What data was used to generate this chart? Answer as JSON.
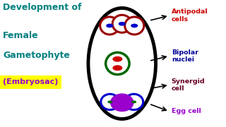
{
  "bg_color": "#ffffff",
  "title_lines": [
    "Development of",
    "Female",
    "Gametophyte"
  ],
  "title_color": "#008080",
  "subtitle": "(Embryosac)",
  "subtitle_color": "#9900cc",
  "subtitle_bg": "#ffff00",
  "labels": {
    "antipodal": {
      "text": "Antipodal\ncells",
      "color": "#cc0000"
    },
    "bipolar": {
      "text": "Bipolar\nnuclei",
      "color": "#000099"
    },
    "synergid": {
      "text": "Synergid\ncell",
      "color": "#660022"
    },
    "egg": {
      "text": "Egg cell",
      "color": "#9900cc"
    }
  }
}
